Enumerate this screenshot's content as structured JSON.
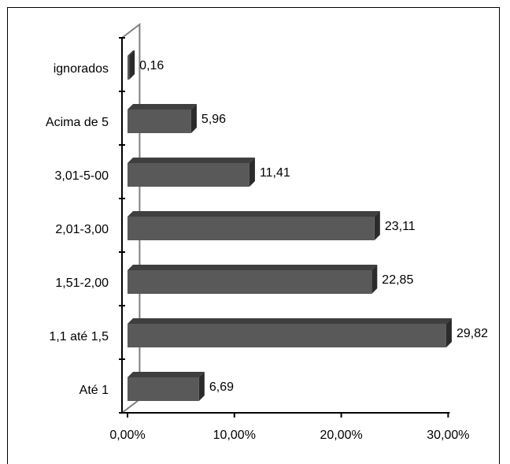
{
  "chart_data": {
    "type": "bar",
    "orientation": "horizontal",
    "style": "3d",
    "categories": [
      "Até 1",
      "1,1 até 1,5",
      "1,51-2,00",
      "2,01-3,00",
      "3,01-5-00",
      "Acima de 5",
      "ignorados"
    ],
    "values": [
      6.69,
      29.82,
      22.85,
      23.11,
      11.41,
      5.96,
      0.16
    ],
    "value_labels": [
      "6,69",
      "29,82",
      "22,85",
      "23,11",
      "11,41",
      "5,96",
      "0,16"
    ],
    "xlim": [
      0,
      30
    ],
    "xticks": [
      0,
      10,
      20,
      30
    ],
    "xtick_labels": [
      "0,00%",
      "10,00%",
      "20,00%",
      "30,00%"
    ],
    "grid": false,
    "legend": "none",
    "colors": {
      "bar_front": "#595959",
      "bar_top": "#3f3f3f",
      "bar_side": "#2b2b2b",
      "wall": "#808080"
    }
  }
}
